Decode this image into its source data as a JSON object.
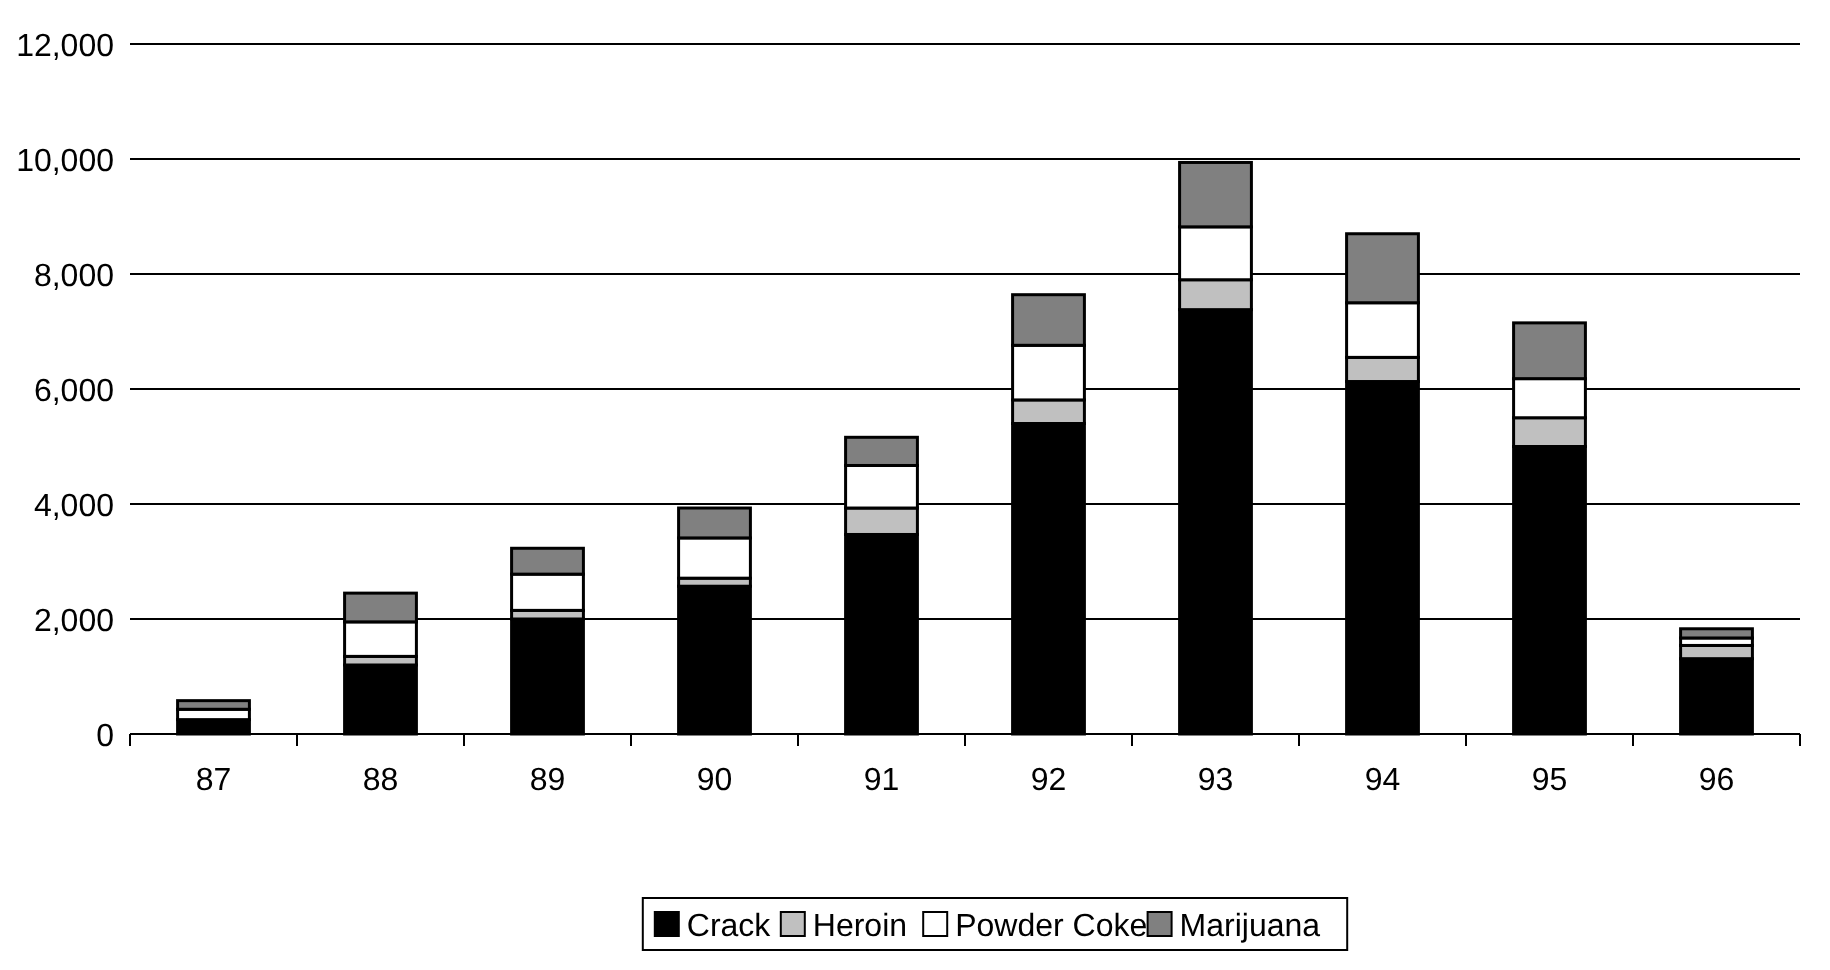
{
  "chart_data": {
    "type": "bar",
    "stacked": true,
    "categories": [
      "87",
      "88",
      "89",
      "90",
      "91",
      "92",
      "93",
      "94",
      "95",
      "96"
    ],
    "series": [
      {
        "name": "Crack",
        "color": "#000000",
        "values": [
          250,
          1200,
          2000,
          2570,
          3470,
          5400,
          7380,
          6130,
          5000,
          1310
        ]
      },
      {
        "name": "Heroin",
        "color": "#c0c0c0",
        "values": [
          null,
          150,
          150,
          140,
          460,
          410,
          520,
          420,
          500,
          230
        ]
      },
      {
        "name": "Powder Coke",
        "color": "#ffffff",
        "values": [
          180,
          600,
          630,
          700,
          740,
          950,
          920,
          950,
          680,
          130
        ]
      },
      {
        "name": "Marijuana",
        "color": "#808080",
        "values": [
          150,
          500,
          450,
          520,
          490,
          880,
          1120,
          1200,
          970,
          160
        ]
      }
    ],
    "ylim": [
      0,
      12000
    ],
    "yticks": [
      {
        "value": 0,
        "label": "0"
      },
      {
        "value": 2000,
        "label": "2,000"
      },
      {
        "value": 4000,
        "label": "4,000"
      },
      {
        "value": 6000,
        "label": "6,000"
      },
      {
        "value": 8000,
        "label": "8,000"
      },
      {
        "value": 10000,
        "label": "10,000"
      },
      {
        "value": 12000,
        "label": "12,000"
      }
    ],
    "grid": "y",
    "legend": "bottom"
  }
}
